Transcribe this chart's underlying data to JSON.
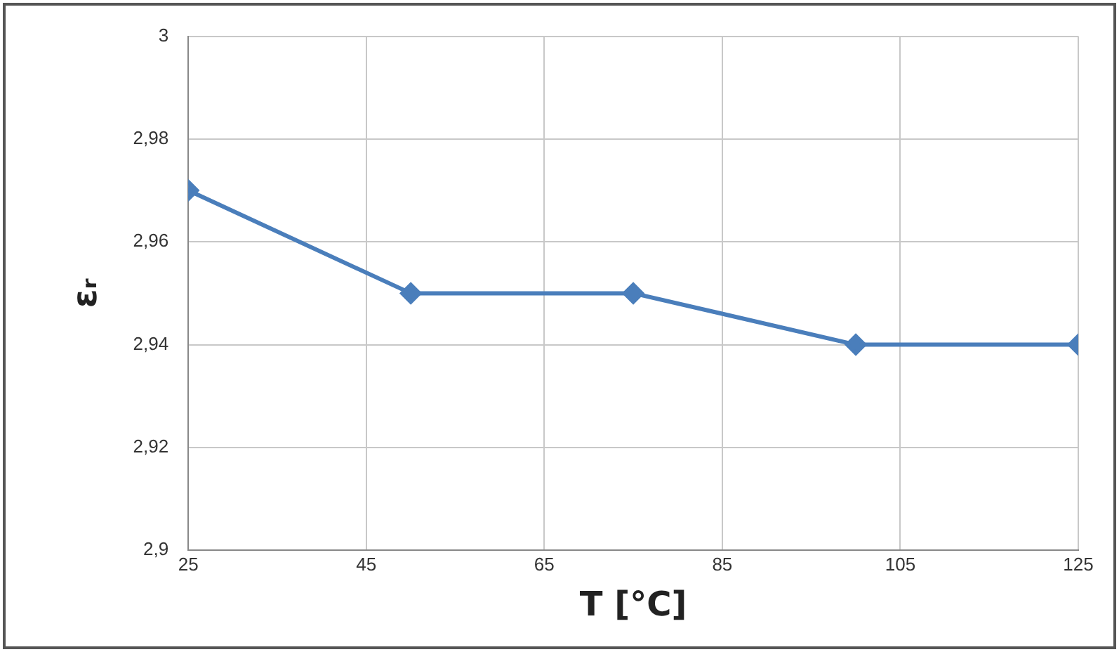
{
  "chart_data": {
    "type": "line",
    "xlabel": "T [°C]",
    "ylabel": "εᵣ",
    "x": [
      25,
      50,
      75,
      100,
      125
    ],
    "series": [
      {
        "color": "#4a7ebb",
        "values": [
          2.97,
          2.95,
          2.95,
          2.94,
          2.94
        ]
      }
    ],
    "xlim": [
      25,
      125
    ],
    "xticks": [
      25,
      45,
      65,
      85,
      105,
      125
    ],
    "ylim": [
      2.9,
      3
    ],
    "yticks": [
      {
        "value": 2.9,
        "label": "2,9"
      },
      {
        "value": 2.92,
        "label": "2,92"
      },
      {
        "value": 2.94,
        "label": "2,94"
      },
      {
        "value": 2.96,
        "label": "2,96"
      },
      {
        "value": 2.98,
        "label": "2,98"
      },
      3
    ],
    "grid": true,
    "legend": false,
    "marker": "diamond",
    "line_style": "solid"
  }
}
